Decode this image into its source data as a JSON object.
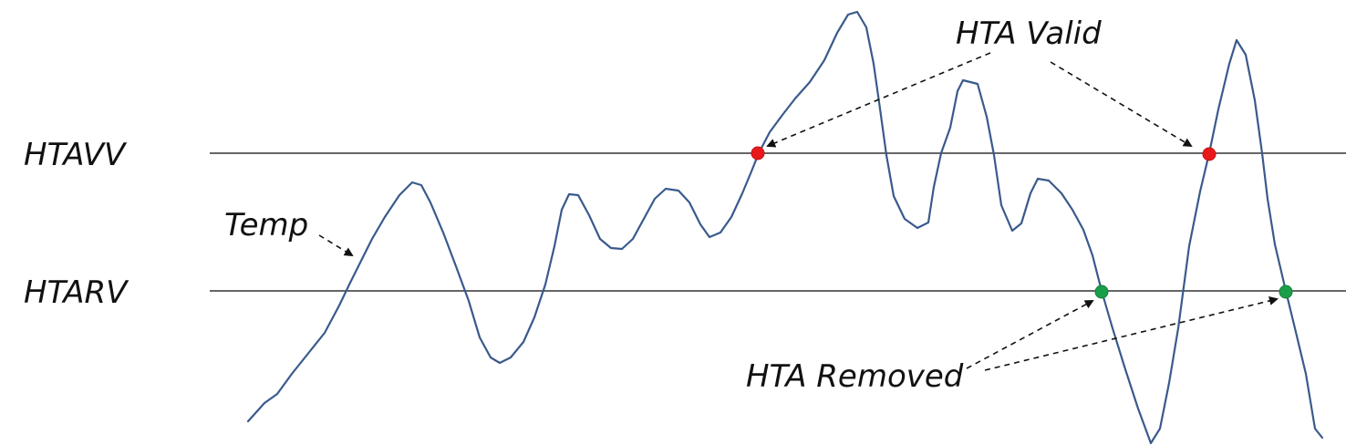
{
  "thresholds": {
    "upper_label": "HTAVV",
    "lower_label": "HTARV"
  },
  "annotations": {
    "temp_label": "Temp",
    "valid_label": "HTA Valid",
    "removed_label": "HTA Removed"
  },
  "colors": {
    "temp_curve": "#3a5a8c",
    "valid_point": "#e8191a",
    "removed_point": "#1a9e4a",
    "threshold_line": "#333333"
  }
}
